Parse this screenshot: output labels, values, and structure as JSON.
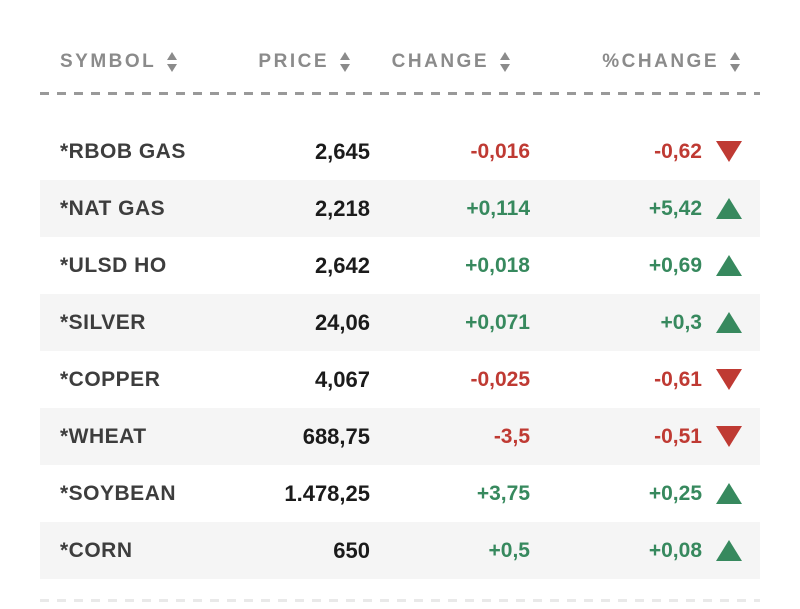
{
  "colors": {
    "positive": "#37895e",
    "negative": "#bf3a33",
    "header_text": "#8b8b8b",
    "symbol_text": "#3d3d3d",
    "price_text": "#1b1b1b",
    "alt_row_bg": "#f5f5f5",
    "divider": "#999999",
    "divider_faint": "#e9e9e9"
  },
  "table": {
    "columns": [
      {
        "key": "symbol",
        "label": "SYMBOL",
        "sortable": true
      },
      {
        "key": "price",
        "label": "PRICE",
        "sortable": true
      },
      {
        "key": "change",
        "label": "CHANGE",
        "sortable": true
      },
      {
        "key": "pct_change",
        "label": "%CHANGE",
        "sortable": true
      }
    ],
    "rows": [
      {
        "symbol": "*RBOB GAS",
        "price": "2,645",
        "change": "-0,016",
        "pct_change": "-0,62",
        "direction": "down"
      },
      {
        "symbol": "*NAT GAS",
        "price": "2,218",
        "change": "+0,114",
        "pct_change": "+5,42",
        "direction": "up"
      },
      {
        "symbol": "*ULSD HO",
        "price": "2,642",
        "change": "+0,018",
        "pct_change": "+0,69",
        "direction": "up"
      },
      {
        "symbol": "*SILVER",
        "price": "24,06",
        "change": "+0,071",
        "pct_change": "+0,3",
        "direction": "up"
      },
      {
        "symbol": "*COPPER",
        "price": "4,067",
        "change": "-0,025",
        "pct_change": "-0,61",
        "direction": "down"
      },
      {
        "symbol": "*WHEAT",
        "price": "688,75",
        "change": "-3,5",
        "pct_change": "-0,51",
        "direction": "down"
      },
      {
        "symbol": "*SOYBEAN",
        "price": "1.478,25",
        "change": "+3,75",
        "pct_change": "+0,25",
        "direction": "up"
      },
      {
        "symbol": "*CORN",
        "price": "650",
        "change": "+0,5",
        "pct_change": "+0,08",
        "direction": "up"
      }
    ]
  },
  "chart_data": {
    "type": "table",
    "title": "",
    "columns": [
      "SYMBOL",
      "PRICE",
      "CHANGE",
      "%CHANGE"
    ],
    "rows": [
      [
        "*RBOB GAS",
        "2,645",
        "-0,016",
        "-0,62"
      ],
      [
        "*NAT GAS",
        "2,218",
        "+0,114",
        "+5,42"
      ],
      [
        "*ULSD HO",
        "2,642",
        "+0,018",
        "+0,69"
      ],
      [
        "*SILVER",
        "24,06",
        "+0,071",
        "+0,3"
      ],
      [
        "*COPPER",
        "4,067",
        "-0,025",
        "-0,61"
      ],
      [
        "*WHEAT",
        "688,75",
        "-3,5",
        "-0,51"
      ],
      [
        "*SOYBEAN",
        "1.478,25",
        "+3,75",
        "+0,25"
      ],
      [
        "*CORN",
        "650",
        "+0,5",
        "+0,08"
      ]
    ]
  }
}
